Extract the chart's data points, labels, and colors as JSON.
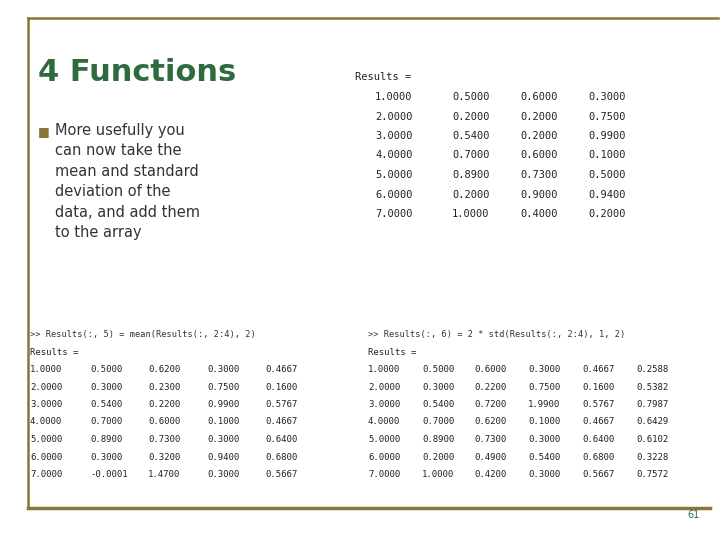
{
  "title": "4 Functions",
  "title_color": "#2E6B3E",
  "bullet_text": "More usefully you\ncan now take the\nmean and standard\ndeviation of the\ndata, and add them\nto the array",
  "bullet_color": "#333333",
  "bullet_marker_color": "#8B7536",
  "top_results_label": "Results =",
  "top_table": [
    [
      "1.0000",
      "0.5000",
      "0.6000",
      "0.3000"
    ],
    [
      "2.0000",
      "0.2000",
      "0.2000",
      "0.7500"
    ],
    [
      "3.0000",
      "0.5400",
      "0.2000",
      "0.9900"
    ],
    [
      "4.0000",
      "0.7000",
      "0.6000",
      "0.1000"
    ],
    [
      "5.0000",
      "0.8900",
      "0.7300",
      "0.5000"
    ],
    [
      "6.0000",
      "0.2000",
      "0.9000",
      "0.9400"
    ],
    [
      "7.0000",
      "1.0000",
      "0.4000",
      "0.2000"
    ]
  ],
  "cmd_left": ">> Results(:, 5) = mean(Results(:, 2:4), 2)",
  "cmd_right": ">> Results(:, 6) = 2 * std(Results(:, 2:4), 1, 2)",
  "left_results_label": "Results =",
  "right_results_label": "Results =",
  "left_table": [
    [
      "1.0000",
      "0.5000",
      "0.6200",
      "0.3000",
      "0.4667"
    ],
    [
      "2.0000",
      "0.3000",
      "0.2300",
      "0.7500",
      "0.1600"
    ],
    [
      "3.0000",
      "0.5400",
      "0.2200",
      "0.9900",
      "0.5767"
    ],
    [
      "4.0000",
      "0.7000",
      "0.6000",
      "0.1000",
      "0.4667"
    ],
    [
      "5.0000",
      "0.8900",
      "0.7300",
      "0.3000",
      "0.6400"
    ],
    [
      "6.0000",
      "0.3000",
      "0.3200",
      "0.9400",
      "0.6800"
    ],
    [
      "7.0000",
      "-0.0001",
      "1.4700",
      "0.3000",
      "0.5667"
    ]
  ],
  "right_table": [
    [
      "1.0000",
      "0.5000",
      "0.6000",
      "0.3000",
      "0.4667",
      "0.2588"
    ],
    [
      "2.0000",
      "0.3000",
      "0.2200",
      "0.7500",
      "0.1600",
      "0.5382"
    ],
    [
      "3.0000",
      "0.5400",
      "0.7200",
      "1.9900",
      "0.5767",
      "0.7987"
    ],
    [
      "4.0000",
      "0.7000",
      "0.6200",
      "0.1000",
      "0.4667",
      "0.6429"
    ],
    [
      "5.0000",
      "0.8900",
      "0.7300",
      "0.3000",
      "0.6400",
      "0.6102"
    ],
    [
      "6.0000",
      "0.2000",
      "0.4900",
      "0.5400",
      "0.6800",
      "0.3228"
    ],
    [
      "7.0000",
      "1.0000",
      "0.4200",
      "0.3000",
      "0.5667",
      "0.7572"
    ]
  ],
  "bg_color": "#FFFFFF",
  "border_color": "#8B7536",
  "page_number": "61"
}
